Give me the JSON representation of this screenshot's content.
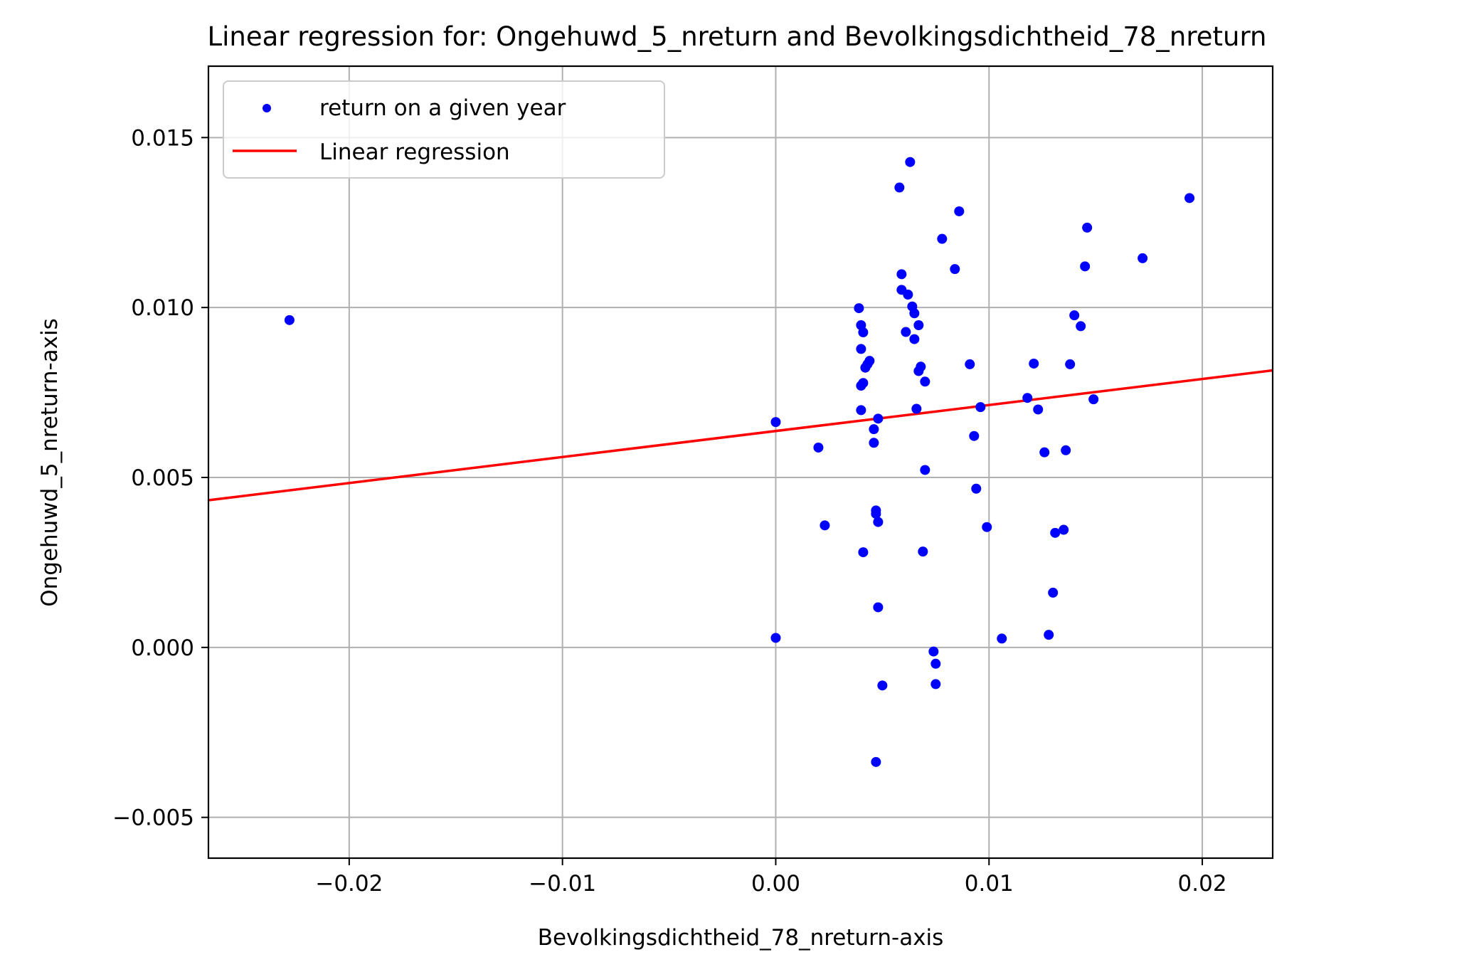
{
  "chart_data": {
    "type": "scatter",
    "title": "Linear regression for: Ongehuwd_5_nreturn and Bevolkingsdichtheid_78_nreturn",
    "xlabel": "Bevolkingsdichtheid_78_nreturn-axis",
    "ylabel": "Ongehuwd_5_nreturn-axis",
    "xlim": [
      -0.0266,
      0.0233
    ],
    "ylim": [
      -0.0062,
      0.0171
    ],
    "xticks": [
      -0.02,
      -0.01,
      0.0,
      0.01,
      0.02
    ],
    "xtick_labels": [
      "−0.02",
      "−0.01",
      "0.00",
      "0.01",
      "0.02"
    ],
    "yticks": [
      -0.005,
      0.0,
      0.005,
      0.01,
      0.015
    ],
    "ytick_labels": [
      "−0.005",
      "0.000",
      "0.005",
      "0.010",
      "0.015"
    ],
    "grid": true,
    "legend_position": "top-left",
    "series": [
      {
        "name": "return on a given year",
        "kind": "scatter",
        "color": "#0000ff",
        "points": [
          [
            -0.0228,
            0.00963
          ],
          [
            0.0,
            0.00663
          ],
          [
            0.0,
            0.00028
          ],
          [
            0.002,
            0.00588
          ],
          [
            0.0023,
            0.00359
          ],
          [
            0.0039,
            0.00998
          ],
          [
            0.004,
            0.00948
          ],
          [
            0.004,
            0.00878
          ],
          [
            0.004,
            0.0077
          ],
          [
            0.004,
            0.00698
          ],
          [
            0.0041,
            0.00927
          ],
          [
            0.0041,
            0.00778
          ],
          [
            0.0041,
            0.0028
          ],
          [
            0.0042,
            0.00823
          ],
          [
            0.0043,
            0.00833
          ],
          [
            0.0044,
            0.00843
          ],
          [
            0.0046,
            0.00642
          ],
          [
            0.0046,
            0.00602
          ],
          [
            0.0047,
            0.00393
          ],
          [
            0.0047,
            0.00403
          ],
          [
            0.0047,
            -0.00337
          ],
          [
            0.0048,
            0.00673
          ],
          [
            0.0048,
            0.00369
          ],
          [
            0.0048,
            0.00118
          ],
          [
            0.005,
            -0.00112
          ],
          [
            0.0058,
            0.01353
          ],
          [
            0.0059,
            0.01052
          ],
          [
            0.0059,
            0.01098
          ],
          [
            0.0061,
            0.00928
          ],
          [
            0.0062,
            0.01038
          ],
          [
            0.0063,
            0.01428
          ],
          [
            0.0064,
            0.01003
          ],
          [
            0.0065,
            0.00983
          ],
          [
            0.0065,
            0.00907
          ],
          [
            0.0066,
            0.00702
          ],
          [
            0.0067,
            0.00948
          ],
          [
            0.0067,
            0.00813
          ],
          [
            0.0068,
            0.00826
          ],
          [
            0.0069,
            0.00282
          ],
          [
            0.007,
            0.00782
          ],
          [
            0.007,
            0.00522
          ],
          [
            0.0074,
            -0.00012
          ],
          [
            0.0075,
            -0.00048
          ],
          [
            0.0075,
            -0.00108
          ],
          [
            0.0078,
            0.01202
          ],
          [
            0.0084,
            0.01113
          ],
          [
            0.0086,
            0.01283
          ],
          [
            0.0091,
            0.00833
          ],
          [
            0.0093,
            0.00622
          ],
          [
            0.0094,
            0.00467
          ],
          [
            0.0096,
            0.00707
          ],
          [
            0.0099,
            0.00354
          ],
          [
            0.0106,
            0.00026
          ],
          [
            0.0118,
            0.00734
          ],
          [
            0.0121,
            0.00835
          ],
          [
            0.0123,
            0.007
          ],
          [
            0.0126,
            0.00574
          ],
          [
            0.0128,
            0.00037
          ],
          [
            0.013,
            0.00161
          ],
          [
            0.0131,
            0.00337
          ],
          [
            0.0135,
            0.00346
          ],
          [
            0.0136,
            0.0058
          ],
          [
            0.0138,
            0.00833
          ],
          [
            0.014,
            0.00977
          ],
          [
            0.0143,
            0.00945
          ],
          [
            0.0145,
            0.01121
          ],
          [
            0.0146,
            0.01235
          ],
          [
            0.0149,
            0.0073
          ],
          [
            0.0172,
            0.01145
          ],
          [
            0.0194,
            0.01322
          ]
        ]
      },
      {
        "name": "Linear regression",
        "kind": "line",
        "color": "#ff0000",
        "points": [
          [
            -0.0266,
            0.00433
          ],
          [
            0.0233,
            0.00815
          ]
        ]
      }
    ]
  }
}
